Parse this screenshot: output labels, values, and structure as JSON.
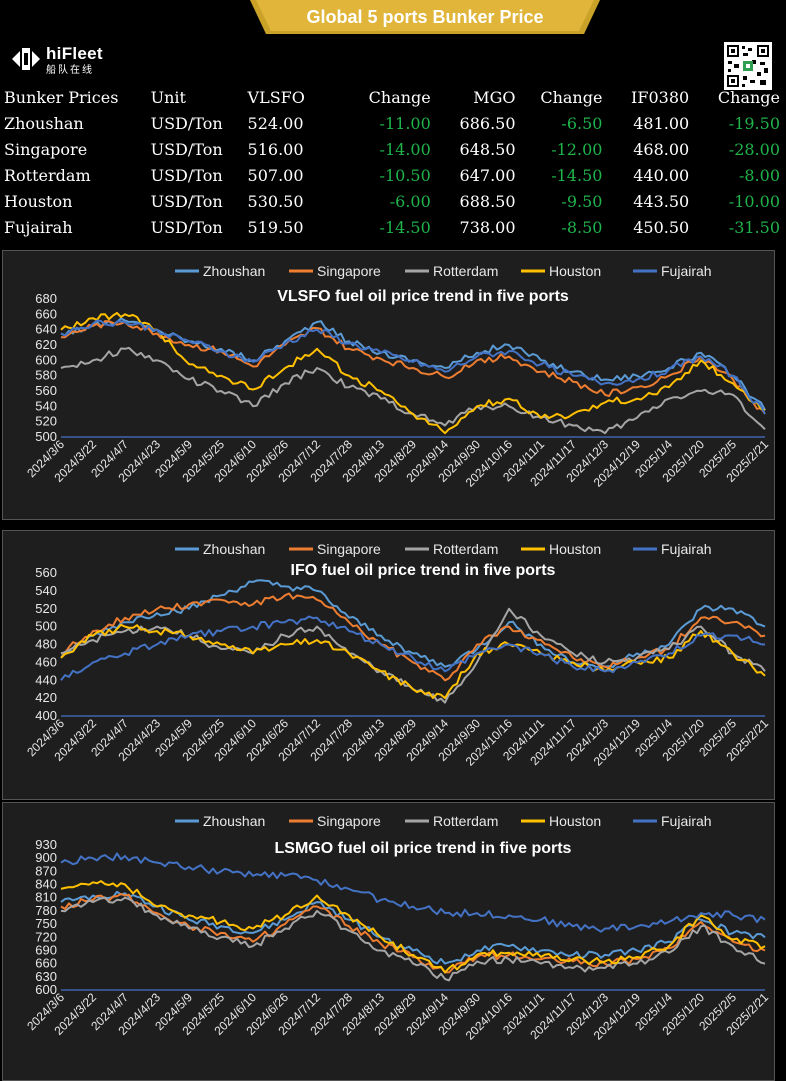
{
  "header": {
    "title": "Global 5 ports  Bunker Price"
  },
  "logo": {
    "brand": "hiFleet",
    "subtitle": "船队在线",
    "icon": "hifleet-logo-icon"
  },
  "qr": {
    "icon": "qr-code-icon"
  },
  "price_table": {
    "headers": [
      "Bunker Prices",
      "Unit",
      "VLSFO",
      "Change",
      "MGO",
      "Change",
      "IF0380",
      "Change"
    ],
    "rows": [
      [
        "Zhoushan",
        "USD/Ton",
        "524.00",
        "-11.00",
        "686.50",
        "-6.50",
        "481.00",
        "-19.50"
      ],
      [
        "Singapore",
        "USD/Ton",
        "516.00",
        "-14.00",
        "648.50",
        "-12.00",
        "468.00",
        "-28.00"
      ],
      [
        "Rotterdam",
        "USD/Ton",
        "507.00",
        "-10.50",
        "647.00",
        "-14.50",
        "440.00",
        "-8.00"
      ],
      [
        "Houston",
        "USD/Ton",
        "530.50",
        "-6.00",
        "688.50",
        "-9.50",
        "443.50",
        "-10.00"
      ],
      [
        "Fujairah",
        "USD/Ton",
        "519.50",
        "-14.50",
        "738.00",
        "-8.50",
        "450.50",
        "-31.50"
      ]
    ],
    "change_color": "#1fb34a"
  },
  "colors": {
    "Zhoushan": "#5b9bd5",
    "Singapore": "#ed7d31",
    "Rotterdam": "#a5a5a5",
    "Houston": "#ffc000",
    "Fujairah": "#4472c4",
    "banner": "#c9a227",
    "panel_bg": "#1e1e1e"
  },
  "chart_data": [
    {
      "id": "vlsfo",
      "type": "line",
      "title": "VLSFO fuel oil price trend in five ports",
      "legend_position": "top",
      "x": [
        "2024/3/6",
        "2024/3/22",
        "2024/4/7",
        "2024/4/23",
        "2024/5/9",
        "2024/5/25",
        "2024/6/10",
        "2024/6/26",
        "2024/7/12",
        "2024/7/28",
        "2024/8/13",
        "2024/8/29",
        "2024/9/14",
        "2024/9/30",
        "2024/10/16",
        "2024/11/1",
        "2024/11/17",
        "2024/12/3",
        "2024/12/19",
        "2025/1/4",
        "2025/1/20",
        "2025/2/5",
        "2025/2/21"
      ],
      "ylim": [
        500,
        680
      ],
      "yticks": [
        500,
        520,
        540,
        560,
        580,
        600,
        620,
        640,
        660,
        680
      ],
      "series": [
        {
          "name": "Zhoushan",
          "values": [
            635,
            645,
            652,
            640,
            625,
            615,
            600,
            625,
            650,
            625,
            610,
            600,
            590,
            610,
            620,
            600,
            585,
            575,
            580,
            590,
            610,
            580,
            535
          ]
        },
        {
          "name": "Singapore",
          "values": [
            630,
            645,
            650,
            635,
            620,
            612,
            592,
            620,
            642,
            615,
            602,
            590,
            578,
            600,
            605,
            585,
            572,
            555,
            565,
            580,
            605,
            575,
            530
          ]
        },
        {
          "name": "Rotterdam",
          "values": [
            590,
            600,
            615,
            600,
            575,
            560,
            540,
            570,
            590,
            565,
            550,
            530,
            515,
            540,
            540,
            525,
            515,
            505,
            525,
            550,
            560,
            555,
            510
          ]
        },
        {
          "name": "Houston",
          "values": [
            640,
            655,
            660,
            640,
            595,
            580,
            562,
            590,
            615,
            580,
            560,
            530,
            505,
            540,
            550,
            525,
            530,
            545,
            550,
            565,
            600,
            570,
            535
          ]
        },
        {
          "name": "Fujairah",
          "values": [
            635,
            648,
            650,
            640,
            625,
            612,
            598,
            622,
            640,
            622,
            610,
            598,
            585,
            605,
            612,
            595,
            580,
            570,
            575,
            588,
            605,
            580,
            530
          ]
        }
      ]
    },
    {
      "id": "ifo",
      "type": "line",
      "title": "IFO fuel oil price trend in five ports",
      "legend_position": "top",
      "x": [
        "2024/3/6",
        "2024/3/22",
        "2024/4/7",
        "2024/4/23",
        "2024/5/9",
        "2024/5/25",
        "2024/6/10",
        "2024/6/26",
        "2024/7/12",
        "2024/7/28",
        "2024/8/13",
        "2024/8/29",
        "2024/9/14",
        "2024/9/30",
        "2024/10/16",
        "2024/11/1",
        "2024/11/17",
        "2024/12/3",
        "2024/12/19",
        "2025/1/4",
        "2025/1/20",
        "2025/2/5",
        "2025/2/21"
      ],
      "ylim": [
        400,
        560
      ],
      "yticks": [
        400,
        420,
        440,
        460,
        480,
        500,
        520,
        540,
        560
      ],
      "series": [
        {
          "name": "Zhoushan",
          "values": [
            465,
            490,
            505,
            515,
            520,
            535,
            550,
            545,
            540,
            510,
            490,
            470,
            455,
            475,
            505,
            480,
            460,
            455,
            470,
            480,
            520,
            520,
            500
          ]
        },
        {
          "name": "Singapore",
          "values": [
            470,
            495,
            510,
            520,
            525,
            530,
            525,
            535,
            530,
            505,
            480,
            460,
            440,
            480,
            500,
            485,
            465,
            455,
            465,
            475,
            510,
            505,
            490
          ]
        },
        {
          "name": "Rotterdam",
          "values": [
            470,
            485,
            495,
            500,
            490,
            475,
            470,
            490,
            500,
            470,
            450,
            430,
            415,
            460,
            520,
            490,
            470,
            460,
            465,
            475,
            500,
            470,
            450
          ]
        },
        {
          "name": "Houston",
          "values": [
            465,
            490,
            500,
            495,
            490,
            480,
            470,
            480,
            485,
            470,
            450,
            430,
            420,
            470,
            480,
            470,
            460,
            450,
            460,
            465,
            495,
            470,
            445
          ]
        },
        {
          "name": "Fujairah",
          "values": [
            440,
            460,
            470,
            480,
            490,
            495,
            500,
            505,
            510,
            495,
            480,
            465,
            450,
            470,
            480,
            470,
            455,
            450,
            460,
            470,
            490,
            490,
            480
          ]
        }
      ]
    },
    {
      "id": "lsmgo",
      "type": "line",
      "title": "LSMGO fuel oil price trend in five ports",
      "legend_position": "top",
      "x": [
        "2024/3/6",
        "2024/3/22",
        "2024/4/7",
        "2024/4/23",
        "2024/5/9",
        "2024/5/25",
        "2024/6/10",
        "2024/6/26",
        "2024/7/12",
        "2024/7/28",
        "2024/8/13",
        "2024/8/29",
        "2024/9/14",
        "2024/9/30",
        "2024/10/16",
        "2024/11/1",
        "2024/11/17",
        "2024/12/3",
        "2024/12/19",
        "2025/1/4",
        "2025/1/20",
        "2025/2/5",
        "2025/2/21"
      ],
      "ylim": [
        600,
        930
      ],
      "yticks": [
        600,
        630,
        660,
        690,
        720,
        750,
        780,
        810,
        840,
        870,
        900,
        930
      ],
      "series": [
        {
          "name": "Zhoushan",
          "values": [
            800,
            815,
            820,
            790,
            760,
            745,
            730,
            760,
            800,
            760,
            720,
            690,
            660,
            690,
            700,
            690,
            680,
            680,
            690,
            710,
            760,
            730,
            720
          ]
        },
        {
          "name": "Singapore",
          "values": [
            790,
            805,
            815,
            775,
            745,
            730,
            710,
            750,
            790,
            745,
            705,
            675,
            640,
            675,
            680,
            670,
            665,
            660,
            670,
            695,
            755,
            710,
            690
          ]
        },
        {
          "name": "Rotterdam",
          "values": [
            780,
            800,
            810,
            770,
            740,
            720,
            700,
            740,
            780,
            735,
            690,
            660,
            625,
            665,
            670,
            660,
            650,
            650,
            660,
            685,
            745,
            700,
            660
          ]
        },
        {
          "name": "Houston",
          "values": [
            830,
            845,
            840,
            790,
            770,
            755,
            740,
            770,
            815,
            770,
            720,
            680,
            640,
            680,
            685,
            675,
            670,
            665,
            675,
            700,
            770,
            715,
            700
          ]
        },
        {
          "name": "Fujairah",
          "values": [
            890,
            900,
            905,
            890,
            880,
            870,
            860,
            860,
            850,
            830,
            805,
            790,
            775,
            775,
            770,
            760,
            745,
            740,
            745,
            755,
            775,
            770,
            760
          ]
        }
      ]
    }
  ]
}
